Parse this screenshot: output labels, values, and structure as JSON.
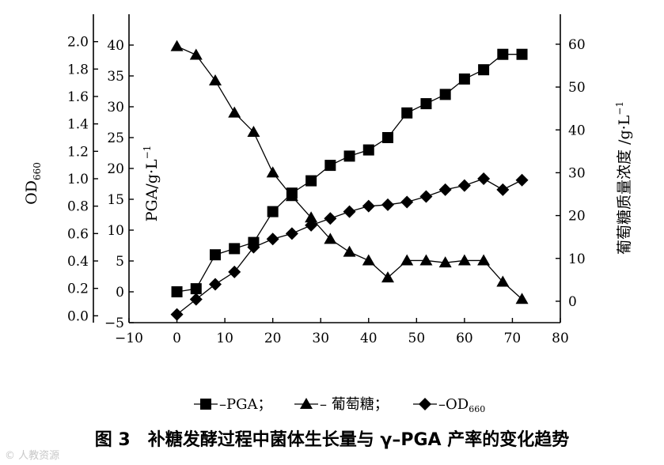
{
  "chart_data": {
    "type": "line",
    "x": {
      "ticks": [
        -10,
        0,
        10,
        20,
        30,
        40,
        50,
        60,
        70,
        80
      ],
      "tick_labels": [
        "−10",
        "0",
        "10",
        "20",
        "30",
        "40",
        "50",
        "60",
        "70",
        "80"
      ],
      "lim": [
        -10,
        80
      ],
      "label": ""
    },
    "axes": {
      "od": {
        "label_main": "OD",
        "label_sub": "660",
        "lim": [
          -0.05,
          2.2
        ],
        "ticks": [
          0.0,
          0.2,
          0.4,
          0.6,
          0.8,
          1.0,
          1.2,
          1.4,
          1.6,
          1.8,
          2.0
        ],
        "tick_labels": [
          "0.0",
          "0.2",
          "0.4",
          "0.6",
          "0.8",
          "1.0",
          "1.2",
          "1.4",
          "1.6",
          "1.8",
          "2.0"
        ]
      },
      "pga": {
        "label_main": "PGA/g·L",
        "label_sup": "−1",
        "lim": [
          -5,
          45
        ],
        "ticks": [
          -5,
          0,
          5,
          10,
          15,
          20,
          25,
          30,
          35,
          40
        ],
        "tick_labels": [
          "−5",
          "0",
          "5",
          "10",
          "15",
          "20",
          "25",
          "30",
          "35",
          "40"
        ]
      },
      "glucose": {
        "label_main": "葡萄糖质量浓度 /g·L",
        "label_sup": "−1",
        "lim": [
          -5,
          67
        ],
        "ticks": [
          0,
          10,
          20,
          30,
          40,
          50,
          60
        ],
        "tick_labels": [
          "0",
          "10",
          "20",
          "30",
          "40",
          "50",
          "60"
        ]
      }
    },
    "series": [
      {
        "name": "PGA",
        "marker": "square",
        "axis": "pga",
        "x": [
          0,
          4,
          8,
          12,
          16,
          20,
          24,
          28,
          32,
          36,
          40,
          44,
          48,
          52,
          56,
          60,
          64,
          68,
          72
        ],
        "y": [
          0,
          0.5,
          6.0,
          7.0,
          8.0,
          13.0,
          16.0,
          18.0,
          20.5,
          22.0,
          23.0,
          25.0,
          29.0,
          30.5,
          32.0,
          34.5,
          36.0,
          38.5,
          38.5
        ]
      },
      {
        "name": "葡萄糖",
        "marker": "triangle",
        "axis": "glucose",
        "x": [
          0,
          4,
          8,
          12,
          16,
          20,
          24,
          28,
          32,
          36,
          40,
          44,
          48,
          52,
          56,
          60,
          64,
          68,
          72
        ],
        "y": [
          59.5,
          57.5,
          51.5,
          44.0,
          39.5,
          30.0,
          24.5,
          19.5,
          14.5,
          11.5,
          9.5,
          5.5,
          9.5,
          9.5,
          9.0,
          9.5,
          9.5,
          4.5,
          0.5
        ]
      },
      {
        "name": "OD",
        "name_sub": "660",
        "marker": "diamond",
        "axis": "od",
        "x": [
          0,
          4,
          8,
          12,
          16,
          20,
          24,
          28,
          32,
          36,
          40,
          44,
          48,
          52,
          56,
          60,
          64,
          68,
          72
        ],
        "y": [
          0.01,
          0.12,
          0.23,
          0.32,
          0.5,
          0.56,
          0.6,
          0.66,
          0.71,
          0.76,
          0.8,
          0.81,
          0.83,
          0.87,
          0.92,
          0.95,
          1.0,
          0.92,
          0.99
        ]
      }
    ],
    "legend": {
      "placement": "bottom",
      "items": [
        {
          "marker": "square",
          "text": "–PGA；"
        },
        {
          "marker": "triangle",
          "text": "– 葡萄糖；"
        },
        {
          "marker": "diamond",
          "text": "–OD",
          "sub": "660"
        }
      ]
    },
    "caption": "图 3　补糖发酵过程中菌体生长量与 γ–PGA 产率的变化趋势",
    "grid": false
  },
  "watermark": "© 人教资源"
}
